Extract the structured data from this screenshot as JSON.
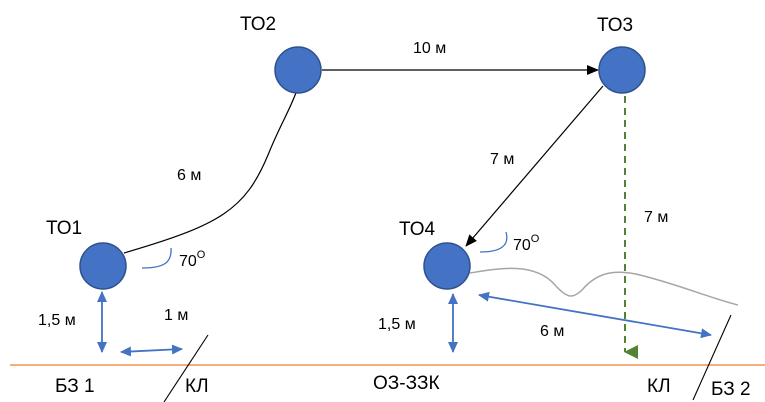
{
  "colors": {
    "node_fill": "#4472C4",
    "node_stroke": "#2F528F",
    "dim_arrow": "#4472C4",
    "baseline": "#ED7D31",
    "dashed_line": "#548235",
    "gray_line": "#A6A6A6",
    "text": "#000000"
  },
  "nodes": {
    "to1": "ТО1",
    "to2": "ТО2",
    "to3": "ТО3",
    "to4": "ТО4"
  },
  "distances": {
    "to2_to3": "10 м",
    "to1_to2": "6 м",
    "to3_to4": "7 м",
    "to3_down": "7 м",
    "to4_right": "6 м",
    "to1_height": "1,5 м",
    "to4_height": "1,5 м",
    "to1_offset": "1 м"
  },
  "angles": {
    "to1_angle": "70",
    "to1_unit": "О",
    "to4_angle": "70",
    "to4_unit": "О"
  },
  "ground_labels": {
    "bz1": "БЗ 1",
    "kl_left": "КЛ",
    "oz_zzk": "ОЗ-ЗЗК",
    "kl_right": "КЛ",
    "bz2": "БЗ 2"
  }
}
